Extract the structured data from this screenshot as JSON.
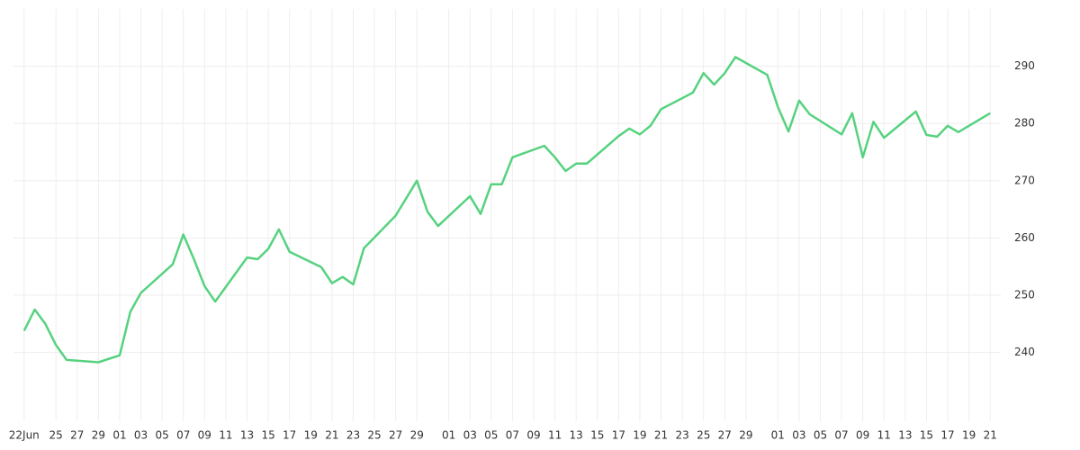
{
  "chart_data": {
    "type": "line",
    "color": "#56d27f",
    "grid": true,
    "x": [
      0,
      1,
      2,
      3,
      4,
      7,
      9,
      10,
      11,
      14,
      15,
      16,
      17,
      18,
      21,
      22,
      23,
      24,
      25,
      28,
      29,
      30,
      31,
      32,
      35,
      37,
      38,
      39,
      42,
      43,
      44,
      45,
      46,
      49,
      50,
      51,
      52,
      53,
      56,
      57,
      58,
      59,
      60,
      63,
      64,
      65,
      66,
      67,
      70,
      71,
      72,
      73,
      74,
      77,
      78,
      79,
      80,
      81,
      84,
      85,
      86,
      87,
      88,
      91
    ],
    "values": [
      243.8,
      247.5,
      245.0,
      241.3,
      238.7,
      238.3,
      239.5,
      247.1,
      250.4,
      255.4,
      260.6,
      256.3,
      251.6,
      248.9,
      256.6,
      256.3,
      258.1,
      261.5,
      257.6,
      254.9,
      252.1,
      253.2,
      251.9,
      258.2,
      263.9,
      270.0,
      264.6,
      262.1,
      267.3,
      264.2,
      269.4,
      269.4,
      274.1,
      276.1,
      274.1,
      271.7,
      273.0,
      273.0,
      277.8,
      279.1,
      278.1,
      279.6,
      282.5,
      285.4,
      288.8,
      286.8,
      288.8,
      291.6,
      288.5,
      282.9,
      278.6,
      284.0,
      281.6,
      278.1,
      281.8,
      274.1,
      280.3,
      277.5,
      282.1,
      278.0,
      277.7,
      279.6,
      278.5,
      281.8
    ],
    "xlim": [
      -1,
      92
    ],
    "ylim": [
      228,
      300
    ],
    "yticks": [
      240,
      250,
      260,
      270,
      280,
      290
    ],
    "xticks": [
      {
        "value": 0,
        "label": "22Jun"
      },
      {
        "value": 3,
        "label": "25"
      },
      {
        "value": 5,
        "label": "27"
      },
      {
        "value": 7,
        "label": "29"
      },
      {
        "value": 9,
        "label": "01"
      },
      {
        "value": 11,
        "label": "03"
      },
      {
        "value": 13,
        "label": "05"
      },
      {
        "value": 15,
        "label": "07"
      },
      {
        "value": 17,
        "label": "09"
      },
      {
        "value": 19,
        "label": "11"
      },
      {
        "value": 21,
        "label": "13"
      },
      {
        "value": 23,
        "label": "15"
      },
      {
        "value": 25,
        "label": "17"
      },
      {
        "value": 27,
        "label": "19"
      },
      {
        "value": 29,
        "label": "21"
      },
      {
        "value": 31,
        "label": "23"
      },
      {
        "value": 33,
        "label": "25"
      },
      {
        "value": 35,
        "label": "27"
      },
      {
        "value": 37,
        "label": "29"
      },
      {
        "value": 40,
        "label": "01"
      },
      {
        "value": 42,
        "label": "03"
      },
      {
        "value": 44,
        "label": "05"
      },
      {
        "value": 46,
        "label": "07"
      },
      {
        "value": 48,
        "label": "09"
      },
      {
        "value": 50,
        "label": "11"
      },
      {
        "value": 52,
        "label": "13"
      },
      {
        "value": 54,
        "label": "15"
      },
      {
        "value": 56,
        "label": "17"
      },
      {
        "value": 58,
        "label": "19"
      },
      {
        "value": 60,
        "label": "21"
      },
      {
        "value": 62,
        "label": "23"
      },
      {
        "value": 64,
        "label": "25"
      },
      {
        "value": 66,
        "label": "27"
      },
      {
        "value": 68,
        "label": "29"
      },
      {
        "value": 71,
        "label": "01"
      },
      {
        "value": 73,
        "label": "03"
      },
      {
        "value": 75,
        "label": "05"
      },
      {
        "value": 77,
        "label": "07"
      },
      {
        "value": 79,
        "label": "09"
      },
      {
        "value": 81,
        "label": "11"
      },
      {
        "value": 83,
        "label": "13"
      },
      {
        "value": 85,
        "label": "15"
      },
      {
        "value": 87,
        "label": "17"
      },
      {
        "value": 89,
        "label": "19"
      },
      {
        "value": 91,
        "label": "21"
      }
    ]
  }
}
